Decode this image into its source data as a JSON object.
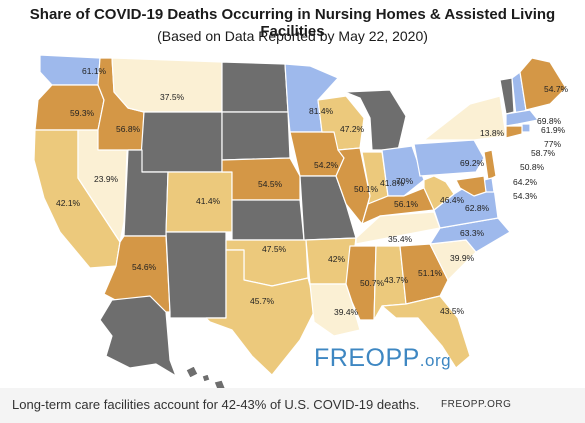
{
  "header": {
    "title": "Share of COVID-19 Deaths Occurring in Nursing Homes & Assisted Living Facilities",
    "subtitle": "(Based on Data Reported by May 22, 2020)"
  },
  "logo": {
    "text": "FREOPP",
    "suffix": ".org"
  },
  "footer": {
    "caption": "Long-term care facilities account for 42-43% of U.S. COVID-19 deaths.",
    "source": "FREOPP.ORG"
  },
  "colors": {
    "no_data": "#6e6e6e",
    "blue": "#9eb9ec",
    "orange": "#d49746",
    "tan": "#ecc97c",
    "cream": "#fbf0d4",
    "border": "#ffffff"
  },
  "states": [
    {
      "id": "WA",
      "value": "61.1%",
      "color": "blue"
    },
    {
      "id": "OR",
      "value": "59.3%",
      "color": "orange"
    },
    {
      "id": "CA",
      "value": "42.1%",
      "color": "tan"
    },
    {
      "id": "NV",
      "value": "23.9%",
      "color": "cream"
    },
    {
      "id": "ID",
      "value": "56.8%",
      "color": "orange"
    },
    {
      "id": "MT",
      "value": "37.5%",
      "color": "cream"
    },
    {
      "id": "WY",
      "value": "",
      "color": "no_data"
    },
    {
      "id": "UT",
      "value": "",
      "color": "no_data"
    },
    {
      "id": "AZ",
      "value": "54.6%",
      "color": "orange"
    },
    {
      "id": "CO",
      "value": "41.4%",
      "color": "tan"
    },
    {
      "id": "NM",
      "value": "",
      "color": "no_data"
    },
    {
      "id": "ND",
      "value": "",
      "color": "no_data"
    },
    {
      "id": "SD",
      "value": "",
      "color": "no_data"
    },
    {
      "id": "NE",
      "value": "54.5%",
      "color": "orange"
    },
    {
      "id": "KS",
      "value": "",
      "color": "no_data"
    },
    {
      "id": "OK",
      "value": "47.5%",
      "color": "tan"
    },
    {
      "id": "TX",
      "value": "45.7%",
      "color": "tan"
    },
    {
      "id": "MN",
      "value": "81.4%",
      "color": "blue"
    },
    {
      "id": "IA",
      "value": "54.2%",
      "color": "orange"
    },
    {
      "id": "MO",
      "value": "",
      "color": "no_data"
    },
    {
      "id": "AR",
      "value": "42%",
      "color": "tan"
    },
    {
      "id": "LA",
      "value": "39.4%",
      "color": "cream"
    },
    {
      "id": "WI",
      "value": "47.2%",
      "color": "tan"
    },
    {
      "id": "IL",
      "value": "50.1%",
      "color": "orange"
    },
    {
      "id": "MI",
      "value": "",
      "color": "no_data"
    },
    {
      "id": "IN",
      "value": "41.8%",
      "color": "tan"
    },
    {
      "id": "OH",
      "value": "70%",
      "color": "blue"
    },
    {
      "id": "KY",
      "value": "56.1%",
      "color": "orange"
    },
    {
      "id": "TN",
      "value": "35.4%",
      "color": "cream"
    },
    {
      "id": "MS",
      "value": "50.7%",
      "color": "orange"
    },
    {
      "id": "AL",
      "value": "43.7%",
      "color": "tan"
    },
    {
      "id": "GA",
      "value": "51.1%",
      "color": "orange"
    },
    {
      "id": "FL",
      "value": "43.5%",
      "color": "tan"
    },
    {
      "id": "SC",
      "value": "39.9%",
      "color": "cream"
    },
    {
      "id": "NC",
      "value": "63.3%",
      "color": "blue"
    },
    {
      "id": "VA",
      "value": "62.8%",
      "color": "blue"
    },
    {
      "id": "WV",
      "value": "46.4%",
      "color": "tan"
    },
    {
      "id": "PA",
      "value": "69.2%",
      "color": "blue"
    },
    {
      "id": "NY",
      "value": "13.8%",
      "color": "cream"
    },
    {
      "id": "VT",
      "value": "",
      "color": "no_data"
    },
    {
      "id": "NH",
      "value": "69.8%",
      "color": "blue"
    },
    {
      "id": "ME",
      "value": "54.7%",
      "color": "orange"
    },
    {
      "id": "MA",
      "value": "61.9%",
      "color": "blue"
    },
    {
      "id": "RI",
      "value": "77%",
      "color": "blue"
    },
    {
      "id": "CT",
      "value": "58.7%",
      "color": "orange"
    },
    {
      "id": "NJ",
      "value": "50.8%",
      "color": "orange"
    },
    {
      "id": "DE",
      "value": "64.2%",
      "color": "blue"
    },
    {
      "id": "MD",
      "value": "54.3%",
      "color": "orange"
    },
    {
      "id": "AK",
      "value": "",
      "color": "no_data"
    },
    {
      "id": "HI",
      "value": "",
      "color": "no_data"
    }
  ]
}
